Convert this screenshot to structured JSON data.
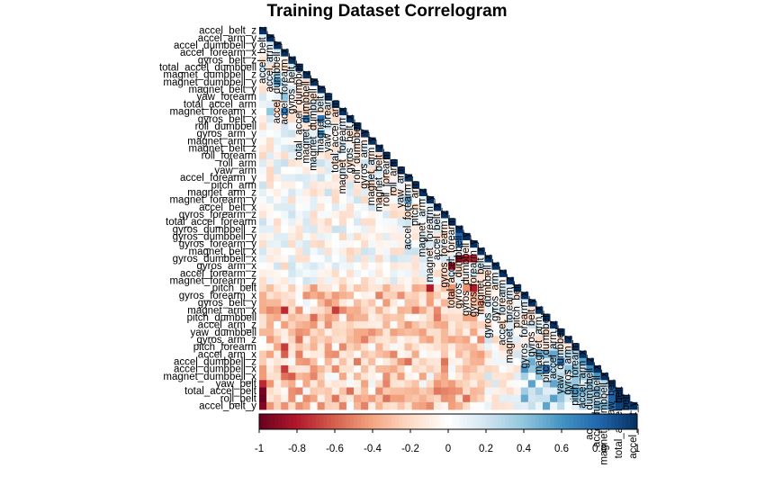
{
  "chart_data": {
    "type": "heatmap",
    "layout": "lower-triangle-correlogram",
    "title": "Training Dataset Correlogram",
    "variables": [
      "accel_belt_z",
      "accel_arm_y",
      "accel_dumbbell_y",
      "accel_forearm_x",
      "gyros_belt_z",
      "total_accel_dumbbell",
      "magnet_dumbbell_z",
      "magnet_dumbbell_y",
      "magnet_belt_y",
      "yaw_forearm",
      "total_accel_arm",
      "magnet_forearm_x",
      "gyros_belt_x",
      "roll_dumbbell",
      "gyros_arm_y",
      "magnet_arm_y",
      "magnet_belt_z",
      "roll_forearm",
      "roll_arm",
      "yaw_arm",
      "accel_forearm_y",
      "pitch_arm",
      "magnet_arm_z",
      "magnet_forearm_y",
      "accel_belt_x",
      "gyros_forearm_z",
      "total_accel_forearm",
      "gyros_dumbbell_z",
      "gyros_dumbbell_y",
      "gyros_forearm_y",
      "magnet_belt_x",
      "gyros_dumbbell_x",
      "gyros_arm_x",
      "accel_forearm_z",
      "magnet_forearm_z",
      "pitch_belt",
      "gyros_forearm_x",
      "gyros_belt_y",
      "magnet_arm_x",
      "pitch_dumbbell",
      "accel_arm_z",
      "yaw_dumbbell",
      "gyros_arm_z",
      "pitch_forearm",
      "accel_arm_x",
      "accel_dumbbell_z",
      "accel_dumbbell_x",
      "magnet_dumbbell_x",
      "yaw_belt",
      "total_accel_belt",
      "roll_belt",
      "accel_belt_y"
    ],
    "color_scale": {
      "min": -1,
      "max": 1,
      "ticks": [
        -1,
        -0.8,
        -0.6,
        -0.4,
        -0.2,
        0,
        0.2,
        0.4,
        0.6,
        0.8,
        1
      ],
      "tick_labels": [
        "-1",
        "-0.8",
        "-0.6",
        "-0.4",
        "-0.2",
        "0",
        "0.2",
        "0.4",
        "0.6",
        "0.8",
        "1"
      ],
      "colors": [
        "#67001F",
        "#B2182B",
        "#D6604D",
        "#F4A582",
        "#FDDBC7",
        "#FFFFFF",
        "#D1E5F0",
        "#92C5DE",
        "#4393C3",
        "#2166AC",
        "#053061"
      ]
    },
    "notable_correlations": [
      {
        "a": "gyros_dumbbell_x",
        "b": "gyros_dumbbell_z",
        "r": -0.9
      },
      {
        "a": "gyros_dumbbell_x",
        "b": "gyros_dumbbell_y",
        "r": -0.8
      },
      {
        "a": "gyros_dumbbell_x",
        "b": "gyros_forearm_y",
        "r": -0.8
      },
      {
        "a": "gyros_dumbbell_y",
        "b": "gyros_dumbbell_z",
        "r": 0.8
      },
      {
        "a": "gyros_forearm_y",
        "b": "gyros_dumbbell_z",
        "r": 0.7
      },
      {
        "a": "accel_belt_y",
        "b": "roll_belt",
        "r": 0.93
      },
      {
        "a": "accel_belt_y",
        "b": "total_accel_belt",
        "r": 0.93
      },
      {
        "a": "accel_belt_y",
        "b": "yaw_belt",
        "r": 0.75
      },
      {
        "a": "roll_belt",
        "b": "total_accel_belt",
        "r": 0.98
      },
      {
        "a": "roll_belt",
        "b": "yaw_belt",
        "r": 0.82
      },
      {
        "a": "total_accel_belt",
        "b": "yaw_belt",
        "r": 0.76
      },
      {
        "a": "accel_dumbbell_x",
        "b": "accel_dumbbell_z",
        "r": 0.65
      },
      {
        "a": "accel_arm_x",
        "b": "accel_dumbbell_z",
        "r": 0.55
      },
      {
        "a": "roll_belt",
        "b": "accel_belt_z",
        "r": -0.99
      },
      {
        "a": "total_accel_belt",
        "b": "accel_belt_z",
        "r": -0.97
      },
      {
        "a": "accel_belt_y",
        "b": "accel_belt_z",
        "r": -0.93
      },
      {
        "a": "yaw_belt",
        "b": "accel_belt_z",
        "r": -0.75
      },
      {
        "a": "gyros_arm_x",
        "b": "total_accel_forearm",
        "r": -0.9
      },
      {
        "a": "pitch_belt",
        "b": "magnet_forearm_y",
        "r": -0.8
      },
      {
        "a": "pitch_belt",
        "b": "gyros_forearm_y",
        "r": -0.8
      },
      {
        "a": "magnet_arm_x",
        "b": "accel_forearm_x",
        "r": -0.75
      },
      {
        "a": "accel_arm_x",
        "b": "accel_forearm_x",
        "r": -0.6
      },
      {
        "a": "accel_dumbbell_x",
        "b": "accel_forearm_x",
        "r": -0.7
      },
      {
        "a": "magnet_arm_x",
        "b": "total_accel_arm",
        "r": -0.7
      },
      {
        "a": "magnet_dumbbell_x",
        "b": "gyros_belt_z",
        "r": -0.6
      },
      {
        "a": "magnet_dumbbell_z",
        "b": "gyros_belt_x",
        "r": 0.7
      },
      {
        "a": "magnet_belt_y",
        "b": "gyros_belt_x",
        "r": 0.75
      },
      {
        "a": "gyros_arm_y",
        "b": "magnet_belt_y",
        "r": 0.6
      },
      {
        "a": "magnet_forearm_y",
        "b": "accel_forearm_y",
        "r": 0.55
      },
      {
        "a": "magnet_forearm_x",
        "b": "accel_forearm_x",
        "r": 0.7
      },
      {
        "a": "magnet_forearm_x",
        "b": "accel_arm_y",
        "r": 0.4
      },
      {
        "a": "magnet_dumbbell_y",
        "b": "accel_dumbbell_y",
        "r": 0.6
      },
      {
        "a": "magnet_dumbbell_z",
        "b": "accel_dumbbell_y",
        "r": 0.4
      },
      {
        "a": "yaw_forearm",
        "b": "accel_forearm_x",
        "r": 0.4
      },
      {
        "a": "pitch_forearm",
        "b": "accel_forearm_x",
        "r": -0.7
      },
      {
        "a": "accel_arm_x",
        "b": "magnet_arm_x",
        "r": 0.5
      },
      {
        "a": "magnet_dumbbell_x",
        "b": "accel_dumbbell_x",
        "r": 0.6
      },
      {
        "a": "pitch_dumbbell",
        "b": "accel_dumbbell_x",
        "r": 0.8
      },
      {
        "a": "yaw_dumbbell",
        "b": "accel_dumbbell_z",
        "r": 0.75
      }
    ]
  }
}
